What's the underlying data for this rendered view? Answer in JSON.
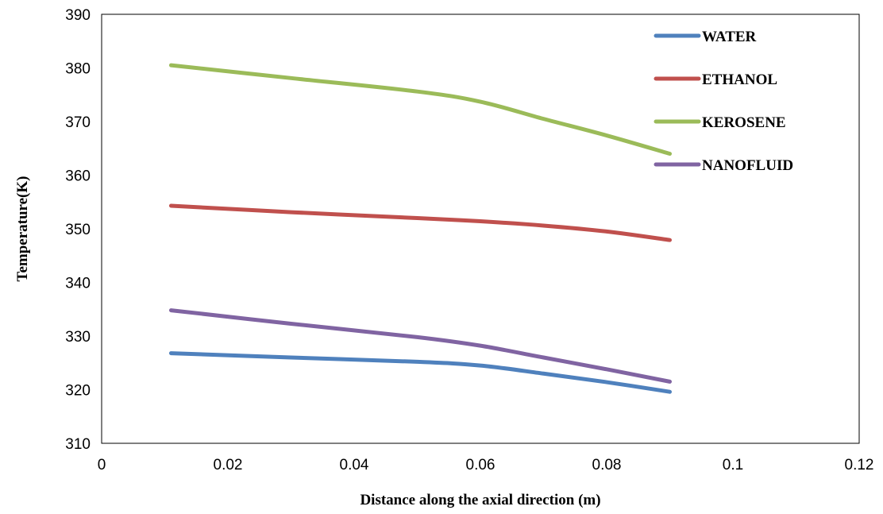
{
  "chart_data": {
    "type": "line",
    "title": "",
    "xlabel": "Distance along the axial direction (m)",
    "ylabel": "Temperature(K)",
    "xlim": [
      0,
      0.12
    ],
    "ylim": [
      310,
      390
    ],
    "xticks": [
      0,
      0.02,
      0.04,
      0.06,
      0.08,
      0.1,
      0.12
    ],
    "yticks": [
      310,
      320,
      330,
      340,
      350,
      360,
      370,
      380,
      390
    ],
    "xtick_labels": [
      "0",
      "0.02",
      "0.04",
      "0.06",
      "0.08",
      "0.1",
      "0.12"
    ],
    "ytick_labels": [
      "310",
      "320",
      "330",
      "340",
      "350",
      "360",
      "370",
      "380",
      "390"
    ],
    "grid": false,
    "legend_position": "top-right",
    "series": [
      {
        "name": "WATER",
        "color": "#4F81BD",
        "x": [
          0.011,
          0.03,
          0.05,
          0.06,
          0.07,
          0.08,
          0.09
        ],
        "y": [
          326.8,
          326.0,
          325.2,
          324.5,
          323.0,
          321.4,
          319.6
        ]
      },
      {
        "name": "ETHANOL",
        "color": "#C0504D",
        "x": [
          0.011,
          0.03,
          0.05,
          0.06,
          0.07,
          0.08,
          0.09
        ],
        "y": [
          354.3,
          353.1,
          352.0,
          351.4,
          350.6,
          349.5,
          347.9
        ]
      },
      {
        "name": "KEROSENE",
        "color": "#9BBB59",
        "x": [
          0.011,
          0.03,
          0.05,
          0.06,
          0.07,
          0.08,
          0.09
        ],
        "y": [
          380.5,
          378.1,
          375.6,
          373.7,
          370.5,
          367.4,
          364.0
        ]
      },
      {
        "name": "NANOFLUID",
        "color": "#8064A2",
        "x": [
          0.011,
          0.03,
          0.05,
          0.06,
          0.07,
          0.08,
          0.09
        ],
        "y": [
          334.8,
          332.3,
          329.8,
          328.2,
          326.0,
          323.8,
          321.5
        ]
      }
    ]
  }
}
